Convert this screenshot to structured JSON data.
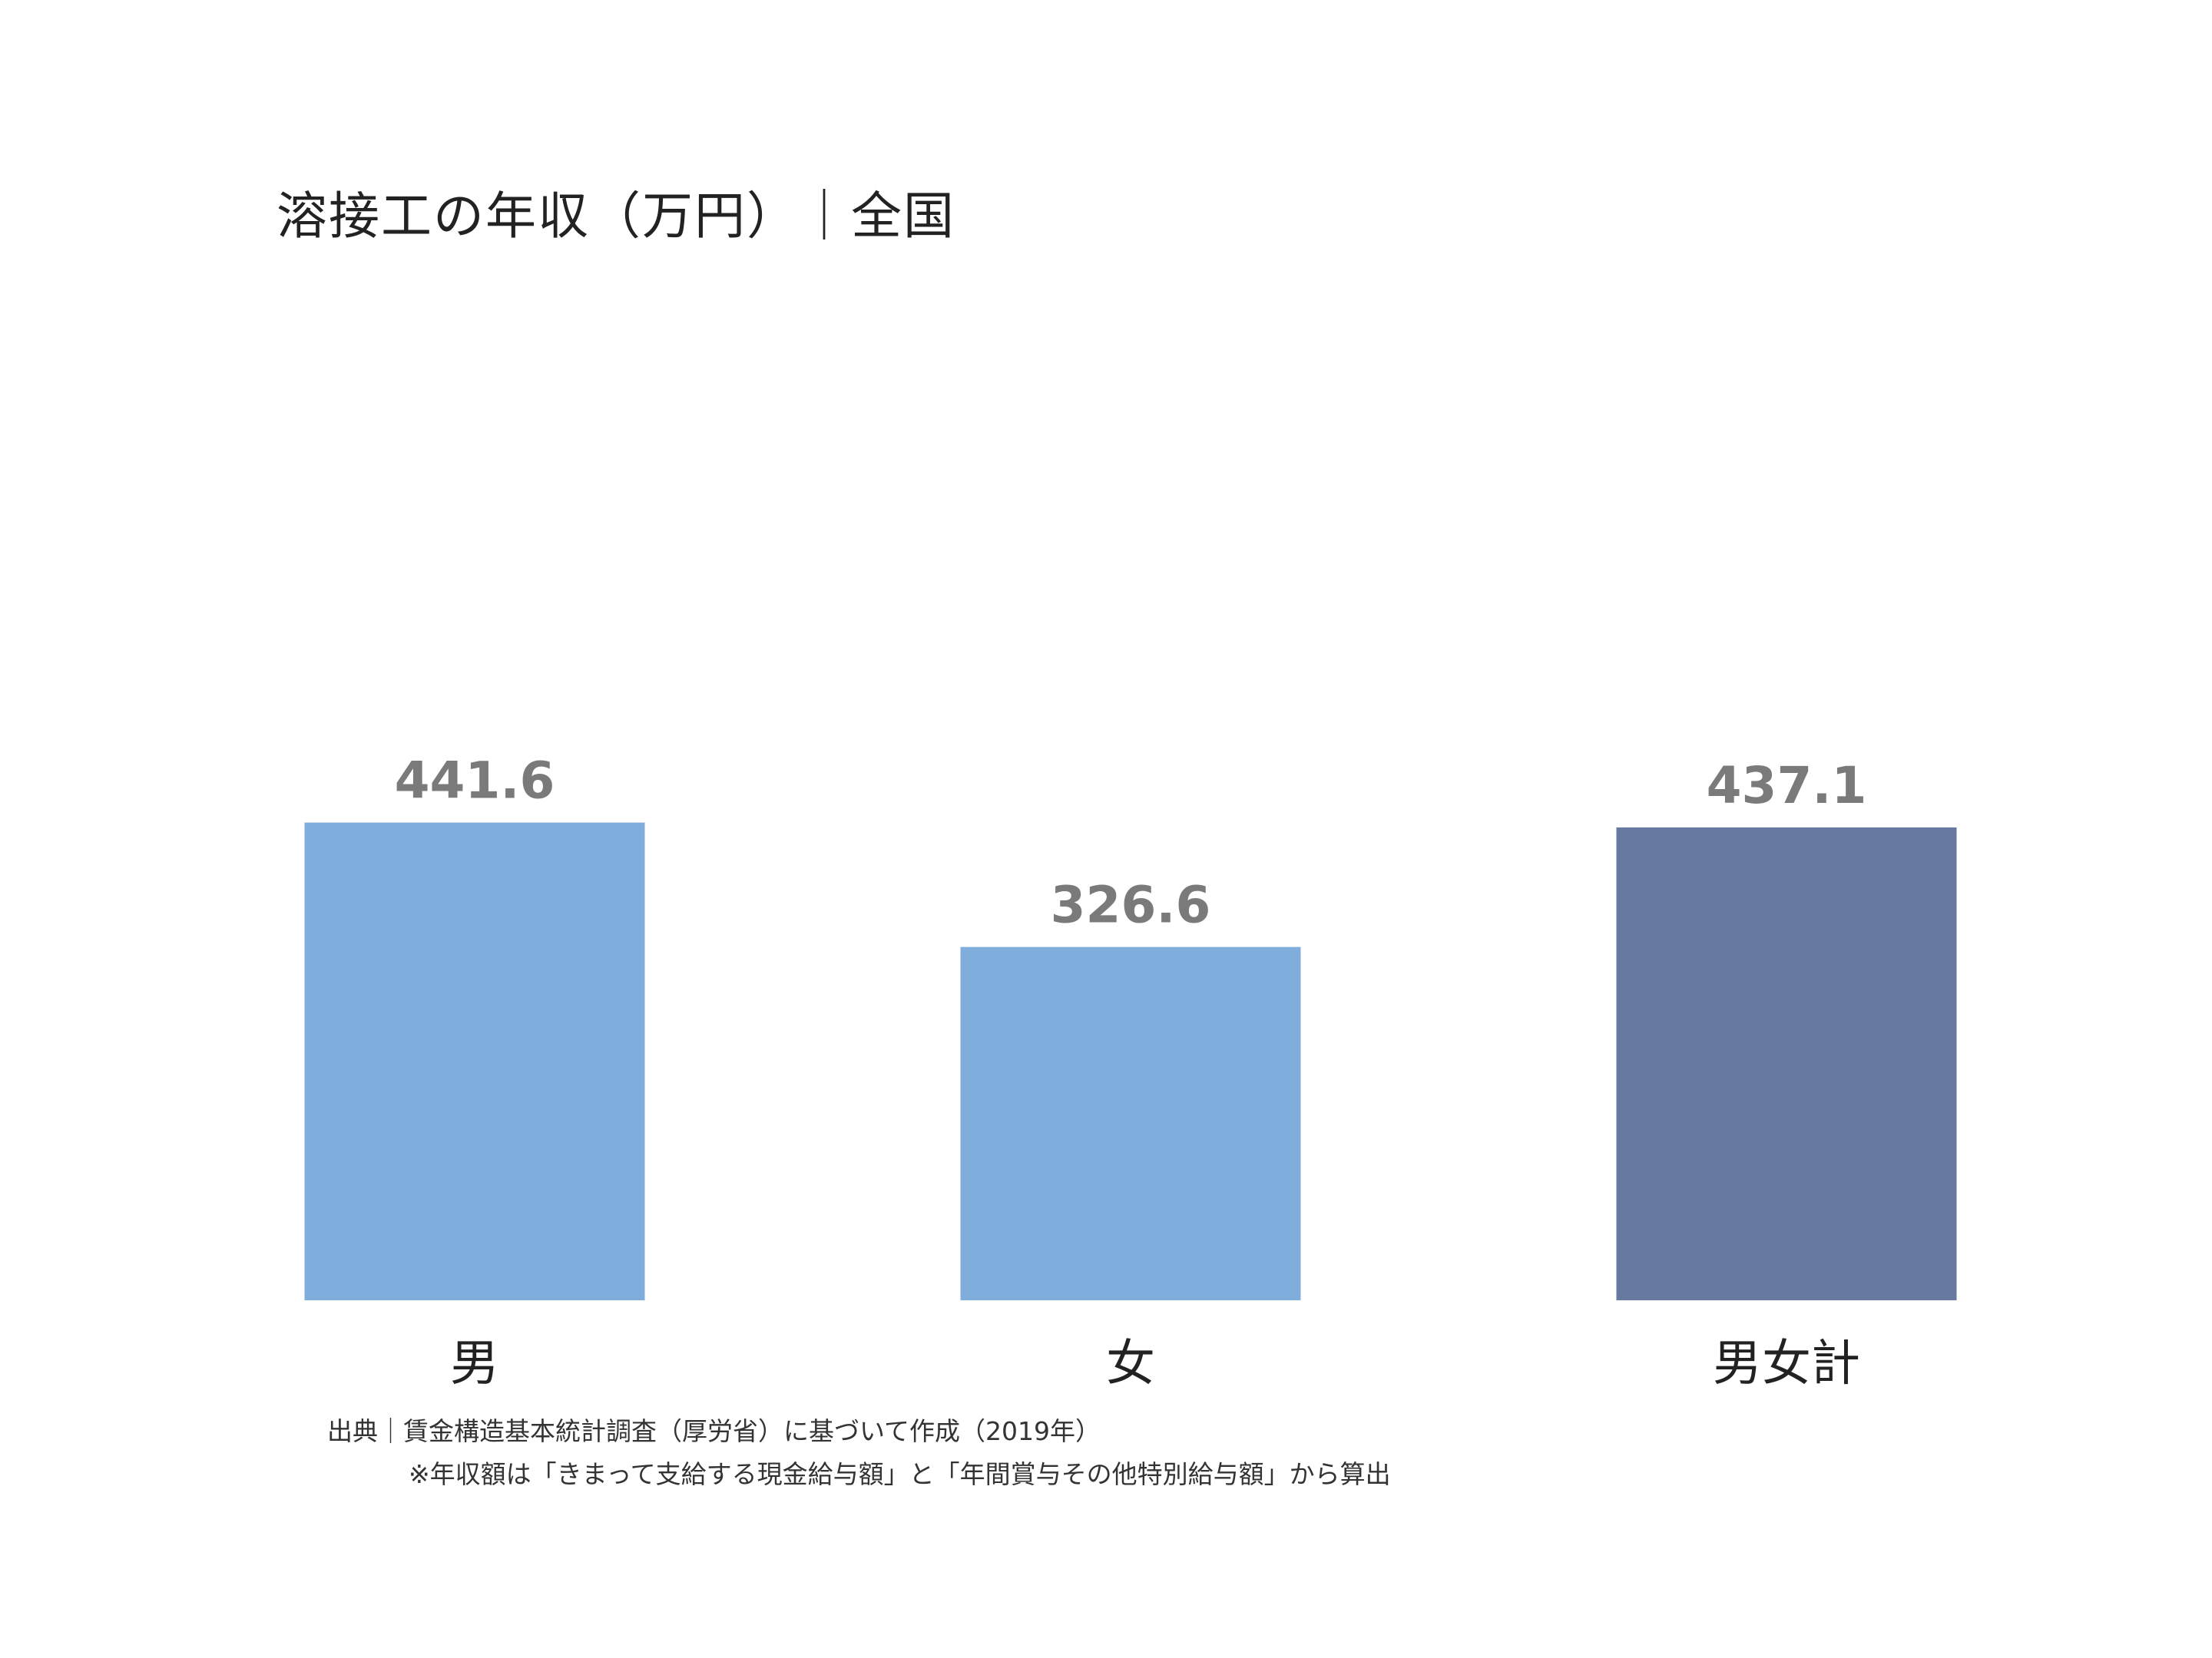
{
  "chart_data": {
    "type": "bar",
    "title": "溶接工の年収（万円）｜全国",
    "categories": [
      "男",
      "女",
      "男女計"
    ],
    "values": [
      441.6,
      326.6,
      437.1
    ],
    "value_labels": [
      "441.6",
      "326.6",
      "437.1"
    ],
    "colors": [
      "#7faedd",
      "#7faedd",
      "#67799f"
    ],
    "ylim": [
      0,
      460
    ],
    "grid": false,
    "legend": "none"
  },
  "notes": {
    "source": "出典｜賃金構造基本統計調査（厚労省）に基づいて作成（2019年）",
    "method": "※年収額は「きまって支給する現金給与額」と「年間賞与その他特別給与額」から算出"
  }
}
